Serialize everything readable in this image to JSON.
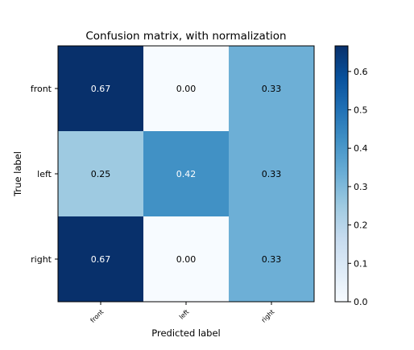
{
  "chart_data": {
    "type": "heatmap",
    "title": "Confusion matrix, with normalization",
    "xlabel": "Predicted label",
    "ylabel": "True label",
    "x_categories": [
      "front",
      "left",
      "right"
    ],
    "y_categories": [
      "front",
      "left",
      "right"
    ],
    "values": [
      [
        0.67,
        0.0,
        0.33
      ],
      [
        0.25,
        0.42,
        0.33
      ],
      [
        0.67,
        0.0,
        0.33
      ]
    ],
    "value_labels": [
      [
        "0.67",
        "0.00",
        "0.33"
      ],
      [
        "0.25",
        "0.42",
        "0.33"
      ],
      [
        "0.67",
        "0.00",
        "0.33"
      ]
    ],
    "colormap": "Blues",
    "vmin": 0.0,
    "vmax": 0.6667,
    "colorbar": {
      "ticks": [
        0.0,
        0.1,
        0.2,
        0.3,
        0.4,
        0.5,
        0.6
      ],
      "tick_labels": [
        "0.0",
        "0.1",
        "0.2",
        "0.3",
        "0.4",
        "0.5",
        "0.6"
      ]
    },
    "text_colors": {
      "light": "#ffffff",
      "dark": "#000000"
    },
    "grid": false
  }
}
